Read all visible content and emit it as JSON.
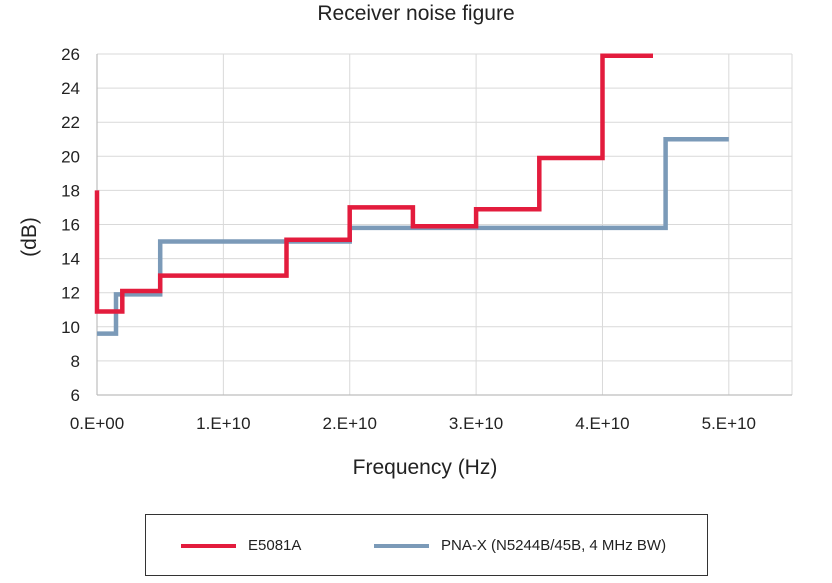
{
  "chart_data": {
    "type": "line",
    "title": "Receiver noise figure",
    "xlabel": "Frequency (Hz)",
    "ylabel": "(dB)",
    "xlim": [
      0,
      55000000000
    ],
    "ylim": [
      6,
      26
    ],
    "grid": true,
    "legend_position": "bottom",
    "xticks": [
      {
        "value": 0,
        "label": "0.E+00"
      },
      {
        "value": 10000000000,
        "label": "1.E+10"
      },
      {
        "value": 20000000000,
        "label": "2.E+10"
      },
      {
        "value": 30000000000,
        "label": "3.E+10"
      },
      {
        "value": 40000000000,
        "label": "4.E+10"
      },
      {
        "value": 50000000000,
        "label": "5.E+10"
      }
    ],
    "yticks": [
      6,
      8,
      10,
      12,
      14,
      16,
      18,
      20,
      22,
      24,
      26
    ],
    "series": [
      {
        "name": "E5081A",
        "color": "#e31c3d",
        "step": true,
        "x": [
          0,
          0,
          2000000000,
          2000000000,
          5000000000,
          5000000000,
          15000000000,
          15000000000,
          20000000000,
          20000000000,
          25000000000,
          25000000000,
          30000000000,
          30000000000,
          35000000000,
          35000000000,
          40000000000,
          40000000000,
          44000000000
        ],
        "y": [
          18,
          10.9,
          10.9,
          12.1,
          12.1,
          13,
          13,
          15.1,
          15.1,
          17,
          17,
          15.9,
          15.9,
          16.9,
          16.9,
          19.9,
          19.9,
          25.9,
          25.9
        ]
      },
      {
        "name": "PNA-X (N5244B/45B, 4 MHz BW)",
        "color": "#7b9ab8",
        "step": true,
        "x": [
          0,
          1500000000,
          1500000000,
          5000000000,
          5000000000,
          20000000000,
          20000000000,
          45000000000,
          45000000000,
          50000000000
        ],
        "y": [
          9.6,
          9.6,
          11.9,
          11.9,
          15,
          15,
          15.8,
          15.8,
          21,
          21
        ]
      }
    ]
  }
}
